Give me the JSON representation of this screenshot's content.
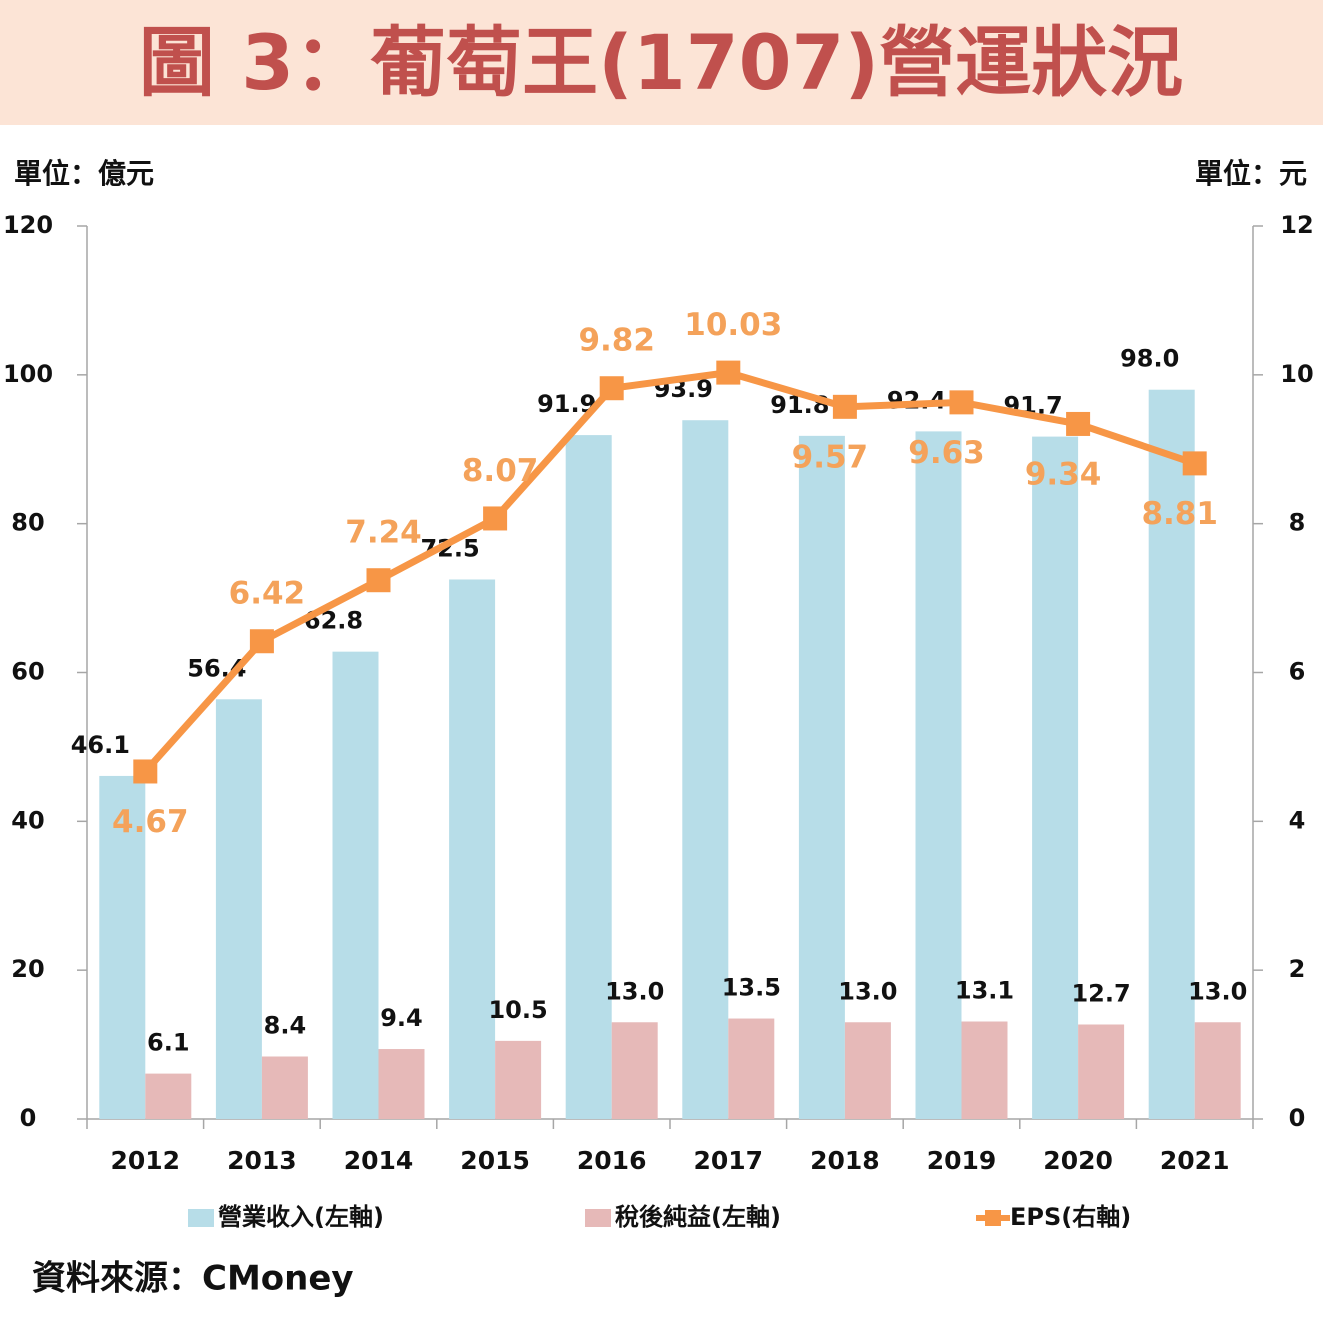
{
  "chart_data": {
    "type": "combo",
    "title": "圖 3：葡萄王(1707)營運狀況",
    "y_unit": "單位：億元",
    "y2_unit": "單位：元",
    "source": "資料來源：CMoney",
    "categories": [
      "2012",
      "2013",
      "2014",
      "2015",
      "2016",
      "2017",
      "2018",
      "2019",
      "2020",
      "2021"
    ],
    "series": [
      {
        "name": "營業收入(左軸)",
        "type": "bar",
        "color": "#b7dde8",
        "values": [
          46.1,
          56.4,
          62.8,
          72.5,
          91.9,
          93.9,
          91.8,
          92.4,
          91.7,
          98.0
        ],
        "value_labels": [
          "46.1",
          "56.4",
          "62.8",
          "72.5",
          "91.9",
          "93.9",
          "91.8",
          "92.4",
          "91.7",
          "98.0"
        ]
      },
      {
        "name": "稅後純益(左軸)",
        "type": "bar",
        "color": "#e6b9b8",
        "values": [
          6.1,
          8.4,
          9.4,
          10.5,
          13.0,
          13.5,
          13.0,
          13.1,
          12.7,
          13.0
        ],
        "value_labels": [
          "6.1",
          "8.4",
          "9.4",
          "10.5",
          "13.0",
          "13.5",
          "13.0",
          "13.1",
          "12.7",
          "13.0"
        ]
      },
      {
        "name": "EPS(右軸)",
        "type": "line",
        "axis": "y2",
        "color": "#f79646",
        "values": [
          4.67,
          6.42,
          7.24,
          8.07,
          9.82,
          10.03,
          9.57,
          9.63,
          9.34,
          8.81
        ],
        "value_labels": [
          "4.67",
          "6.42",
          "7.24",
          "8.07",
          "9.82",
          "10.03",
          "9.57",
          "9.63",
          "9.34",
          "8.81"
        ]
      }
    ],
    "ylim": [
      0,
      120
    ],
    "yticks": [
      0,
      20,
      40,
      60,
      80,
      100,
      120
    ],
    "y2lim": [
      0,
      12
    ],
    "y2ticks": [
      0,
      2,
      4,
      6,
      8,
      10,
      12
    ]
  }
}
